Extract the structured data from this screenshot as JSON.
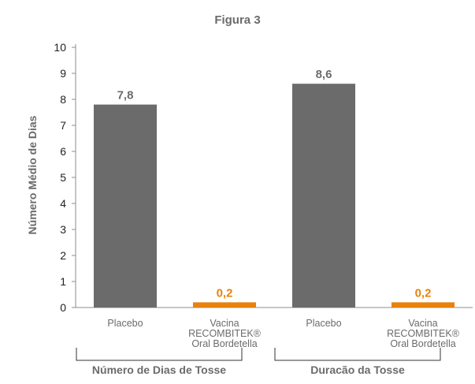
{
  "chart_data": {
    "type": "bar",
    "title": "Figura 3",
    "ylabel": "Número Médio de Dias",
    "xlabel": "",
    "ylim": [
      0,
      10
    ],
    "yticks": [
      "0",
      "1",
      "2",
      "3",
      "4",
      "5",
      "6",
      "7",
      "8",
      "9",
      "10"
    ],
    "grid": false,
    "groups": [
      {
        "label": "Número de Dias de Tosse",
        "bars": [
          {
            "category": "Placebo",
            "category_lines": [
              "Placebo"
            ],
            "value": 7.8,
            "value_label": "7,8",
            "color": "#6b6b6b"
          },
          {
            "category": "Vacina RECOMBITEK® Oral Bordetella",
            "category_lines": [
              "Vacina",
              "RECOMBITEK®",
              "Oral Bordetella"
            ],
            "value": 0.2,
            "value_label": "0,2",
            "color": "#e8820c"
          }
        ]
      },
      {
        "label": "Duracão da Tosse",
        "bars": [
          {
            "category": "Placebo",
            "category_lines": [
              "Placebo"
            ],
            "value": 8.6,
            "value_label": "8,6",
            "color": "#6b6b6b"
          },
          {
            "category": "Vacina RECOMBITEK® Oral Bordetella",
            "category_lines": [
              "Vacina",
              "RECOMBITEK®",
              "Oral Bordetella"
            ],
            "value": 0.2,
            "value_label": "0,2",
            "color": "#e8820c"
          }
        ]
      }
    ],
    "colors": {
      "placebo": "#6b6b6b",
      "vaccine": "#e8820c",
      "text": "#6b6b6b"
    }
  }
}
